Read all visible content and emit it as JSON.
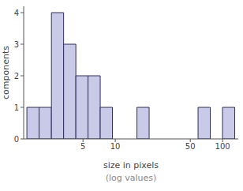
{
  "chart_data": {
    "type": "histogram",
    "xlabel": "size in pixels",
    "xlabel_subtitle": "(log values)",
    "ylabel": "components",
    "bins": [
      1.5,
      1.95,
      2.54,
      3.3,
      4.29,
      5.57,
      7.24,
      9.41,
      12.24,
      15.91,
      20.68,
      26.89,
      34.95,
      45.44,
      59.07,
      76.79,
      99.83,
      129.78
    ],
    "counts": [
      1,
      1,
      4,
      3,
      2,
      2,
      1,
      0,
      0,
      1,
      0,
      0,
      0,
      0,
      1,
      0,
      1
    ],
    "xlim": [
      1.4,
      140
    ],
    "ylim": [
      0,
      4.2
    ],
    "xticks": [
      5,
      10,
      50,
      100
    ],
    "yticks": [
      0,
      1,
      2,
      3,
      4
    ],
    "log": "x",
    "color": "#c9c9e8"
  }
}
